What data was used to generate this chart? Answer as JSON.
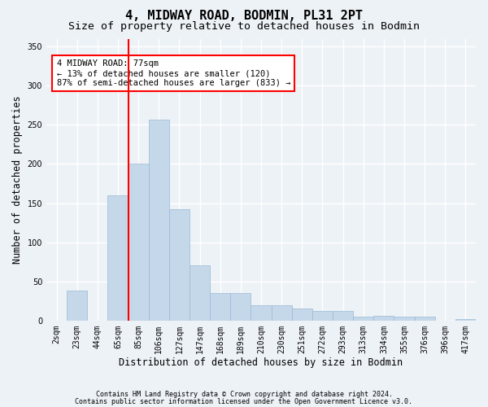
{
  "title": "4, MIDWAY ROAD, BODMIN, PL31 2PT",
  "subtitle": "Size of property relative to detached houses in Bodmin",
  "xlabel": "Distribution of detached houses by size in Bodmin",
  "ylabel": "Number of detached properties",
  "footer_line1": "Contains HM Land Registry data © Crown copyright and database right 2024.",
  "footer_line2": "Contains public sector information licensed under the Open Government Licence v3.0.",
  "bar_color": "#c5d8ea",
  "bar_edge_color": "#9ab8d4",
  "redline_bin": 3.5,
  "annotation_text": "4 MIDWAY ROAD: 77sqm\n← 13% of detached houses are smaller (120)\n87% of semi-detached houses are larger (833) →",
  "categories": [
    "2sqm",
    "23sqm",
    "44sqm",
    "65sqm",
    "85sqm",
    "106sqm",
    "127sqm",
    "147sqm",
    "168sqm",
    "189sqm",
    "210sqm",
    "230sqm",
    "251sqm",
    "272sqm",
    "293sqm",
    "313sqm",
    "334sqm",
    "355sqm",
    "376sqm",
    "396sqm",
    "417sqm"
  ],
  "values": [
    0,
    38,
    0,
    160,
    200,
    257,
    142,
    70,
    35,
    35,
    20,
    20,
    15,
    12,
    12,
    5,
    6,
    5,
    5,
    0,
    2
  ],
  "ylim": [
    0,
    360
  ],
  "yticks": [
    0,
    50,
    100,
    150,
    200,
    250,
    300,
    350
  ],
  "background_color": "#edf2f7",
  "plot_bg_color": "#edf2f7",
  "grid_color": "#ffffff",
  "title_fontsize": 11,
  "subtitle_fontsize": 9.5,
  "axis_label_fontsize": 8.5,
  "tick_fontsize": 7,
  "annotation_fontsize": 7.5,
  "footer_fontsize": 6
}
